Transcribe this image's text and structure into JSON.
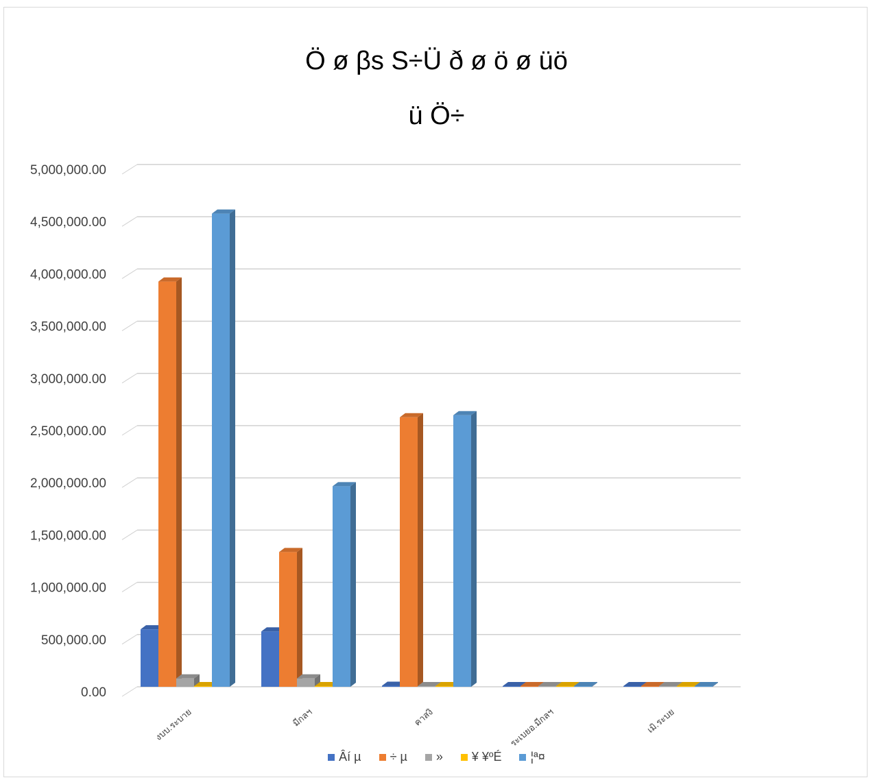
{
  "chart_data": {
    "type": "bar",
    "title_lines": [
      "Ö ø βs S÷Ü ð ø ö ø üö",
      "ü Ö÷"
    ],
    "categories": [
      "งบบ.ระบาย",
      "มีกลฯ",
      "คาสงิ",
      "ระเบยอ.มีกลฯ",
      "เมิ.ระบย"
    ],
    "series": [
      {
        "name": "Âí µ",
        "color": "#4472c4",
        "values": [
          550000,
          530000,
          10000,
          0,
          0
        ]
      },
      {
        "name": "÷ µ",
        "color": "#ed7d31",
        "values": [
          3880000,
          1290000,
          2580000,
          0,
          0
        ]
      },
      {
        "name": "»",
        "color": "#a5a5a5",
        "values": [
          80000,
          80000,
          5000,
          0,
          0
        ]
      },
      {
        "name": "¥ ¥ºÉ",
        "color": "#ffc000",
        "values": [
          5000,
          5000,
          5000,
          0,
          0
        ]
      },
      {
        "name": "¦ª¤",
        "color": "#5b9bd5",
        "values": [
          4530000,
          1920000,
          2600000,
          0,
          0
        ]
      }
    ],
    "ylim": [
      0,
      5000000
    ],
    "yticks": [
      "0.00",
      "500,000.00",
      "1,000,000.00",
      "1,500,000.00",
      "2,000,000.00",
      "2,500,000.00",
      "3,000,000.00",
      "3,500,000.00",
      "4,000,000.00",
      "4,500,000.00",
      "5,000,000.00"
    ],
    "grid": true,
    "legend_position": "bottom"
  }
}
